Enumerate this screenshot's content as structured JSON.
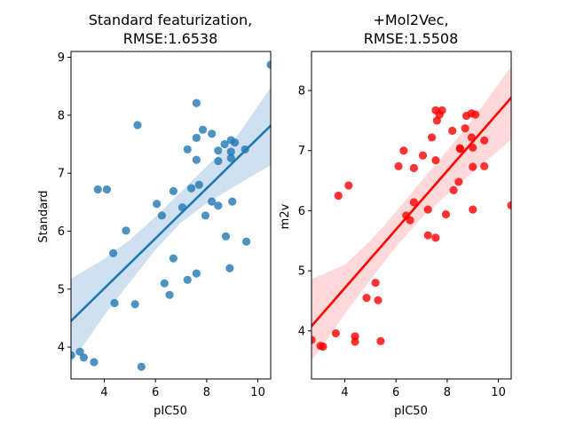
{
  "chart_data": [
    {
      "type": "scatter",
      "title_lines": [
        "Standard featurization,",
        "RMSE:1.6538"
      ],
      "xlabel": "pIC50",
      "ylabel": "Standard",
      "xlim": [
        2.7,
        10.5
      ],
      "ylim": [
        3.45,
        9.1
      ],
      "xticks": [
        4,
        6,
        8,
        10
      ],
      "yticks": [
        4,
        5,
        6,
        7,
        8,
        9
      ],
      "point_color": "#1f77b4",
      "line_color": "#1f77b4",
      "band_color": "#cfe0f0",
      "regression": {
        "x": [
          2.7,
          10.5
        ],
        "y": [
          4.45,
          7.82
        ]
      },
      "confidence_band": {
        "x": [
          2.7,
          4,
          5,
          6,
          7,
          8,
          9,
          10.5
        ],
        "lower": [
          3.72,
          4.55,
          5.12,
          5.68,
          6.15,
          6.48,
          6.75,
          7.14
        ],
        "upper": [
          5.18,
          5.52,
          5.85,
          6.25,
          6.68,
          7.12,
          7.52,
          8.48
        ]
      },
      "points": [
        [
          2.7,
          3.86
        ],
        [
          3.05,
          3.92
        ],
        [
          3.2,
          3.82
        ],
        [
          3.6,
          3.74
        ],
        [
          3.75,
          6.72
        ],
        [
          4.1,
          6.72
        ],
        [
          4.35,
          5.62
        ],
        [
          4.4,
          4.76
        ],
        [
          4.85,
          6.01
        ],
        [
          5.2,
          4.74
        ],
        [
          5.3,
          7.83
        ],
        [
          5.45,
          3.66
        ],
        [
          6.05,
          6.47
        ],
        [
          6.25,
          6.27
        ],
        [
          6.35,
          5.1
        ],
        [
          6.55,
          4.9
        ],
        [
          6.7,
          5.53
        ],
        [
          6.7,
          6.69
        ],
        [
          7.05,
          6.41
        ],
        [
          7.25,
          7.41
        ],
        [
          7.25,
          5.16
        ],
        [
          7.4,
          6.74
        ],
        [
          7.6,
          8.21
        ],
        [
          7.6,
          7.61
        ],
        [
          7.6,
          7.23
        ],
        [
          7.6,
          5.27
        ],
        [
          7.7,
          6.8
        ],
        [
          7.85,
          7.75
        ],
        [
          7.95,
          6.27
        ],
        [
          8.2,
          7.68
        ],
        [
          8.2,
          6.51
        ],
        [
          8.45,
          7.39
        ],
        [
          8.45,
          7.21
        ],
        [
          8.45,
          6.44
        ],
        [
          8.7,
          7.5
        ],
        [
          8.75,
          5.91
        ],
        [
          8.9,
          5.36
        ],
        [
          8.95,
          7.57
        ],
        [
          8.95,
          7.37
        ],
        [
          8.95,
          7.26
        ],
        [
          9.0,
          6.51
        ],
        [
          9.1,
          7.53
        ],
        [
          9.5,
          7.41
        ],
        [
          9.55,
          5.82
        ],
        [
          10.5,
          8.87
        ]
      ]
    },
    {
      "type": "scatter",
      "title_lines": [
        "+Mol2Vec,",
        "RMSE:1.5508"
      ],
      "xlabel": "pIC50",
      "ylabel": "m2v",
      "xlim": [
        2.7,
        10.5
      ],
      "ylim": [
        3.2,
        8.65
      ],
      "xticks": [
        4,
        6,
        8,
        10
      ],
      "yticks": [
        4,
        5,
        6,
        7,
        8
      ],
      "point_color": "#ff0000",
      "line_color": "#ff0000",
      "band_color": "#ffd9d9",
      "regression": {
        "x": [
          2.7,
          10.5
        ],
        "y": [
          4.08,
          7.88
        ]
      },
      "confidence_band": {
        "x": [
          2.7,
          4,
          5,
          6,
          7,
          8,
          9,
          10.5
        ],
        "lower": [
          3.5,
          4.28,
          4.85,
          5.4,
          5.88,
          6.27,
          6.64,
          7.18
        ],
        "upper": [
          4.86,
          5.1,
          5.5,
          5.98,
          6.5,
          7.0,
          7.52,
          8.4
        ]
      },
      "points": [
        [
          2.7,
          3.85
        ],
        [
          3.05,
          3.75
        ],
        [
          3.15,
          3.74
        ],
        [
          3.65,
          3.96
        ],
        [
          3.75,
          6.25
        ],
        [
          4.15,
          6.42
        ],
        [
          4.4,
          3.91
        ],
        [
          4.4,
          3.82
        ],
        [
          4.85,
          4.55
        ],
        [
          5.2,
          4.8
        ],
        [
          5.3,
          4.51
        ],
        [
          5.4,
          3.83
        ],
        [
          6.1,
          6.74
        ],
        [
          6.3,
          7.0
        ],
        [
          6.4,
          5.92
        ],
        [
          6.55,
          5.84
        ],
        [
          6.7,
          6.71
        ],
        [
          6.7,
          6.14
        ],
        [
          7.05,
          6.92
        ],
        [
          7.25,
          6.02
        ],
        [
          7.25,
          5.59
        ],
        [
          7.4,
          7.22
        ],
        [
          7.55,
          7.67
        ],
        [
          7.55,
          6.84
        ],
        [
          7.55,
          5.55
        ],
        [
          7.6,
          7.5
        ],
        [
          7.7,
          7.6
        ],
        [
          7.8,
          7.67
        ],
        [
          7.95,
          5.94
        ],
        [
          8.2,
          7.33
        ],
        [
          8.25,
          6.34
        ],
        [
          8.45,
          6.48
        ],
        [
          8.5,
          7.04
        ],
        [
          8.5,
          7.03
        ],
        [
          8.7,
          7.37
        ],
        [
          8.75,
          7.58
        ],
        [
          8.95,
          7.62
        ],
        [
          8.95,
          7.22
        ],
        [
          9.0,
          7.05
        ],
        [
          9.0,
          6.73
        ],
        [
          9.0,
          6.02
        ],
        [
          9.1,
          7.6
        ],
        [
          9.45,
          7.17
        ],
        [
          9.45,
          6.74
        ],
        [
          10.5,
          6.09
        ]
      ]
    }
  ]
}
